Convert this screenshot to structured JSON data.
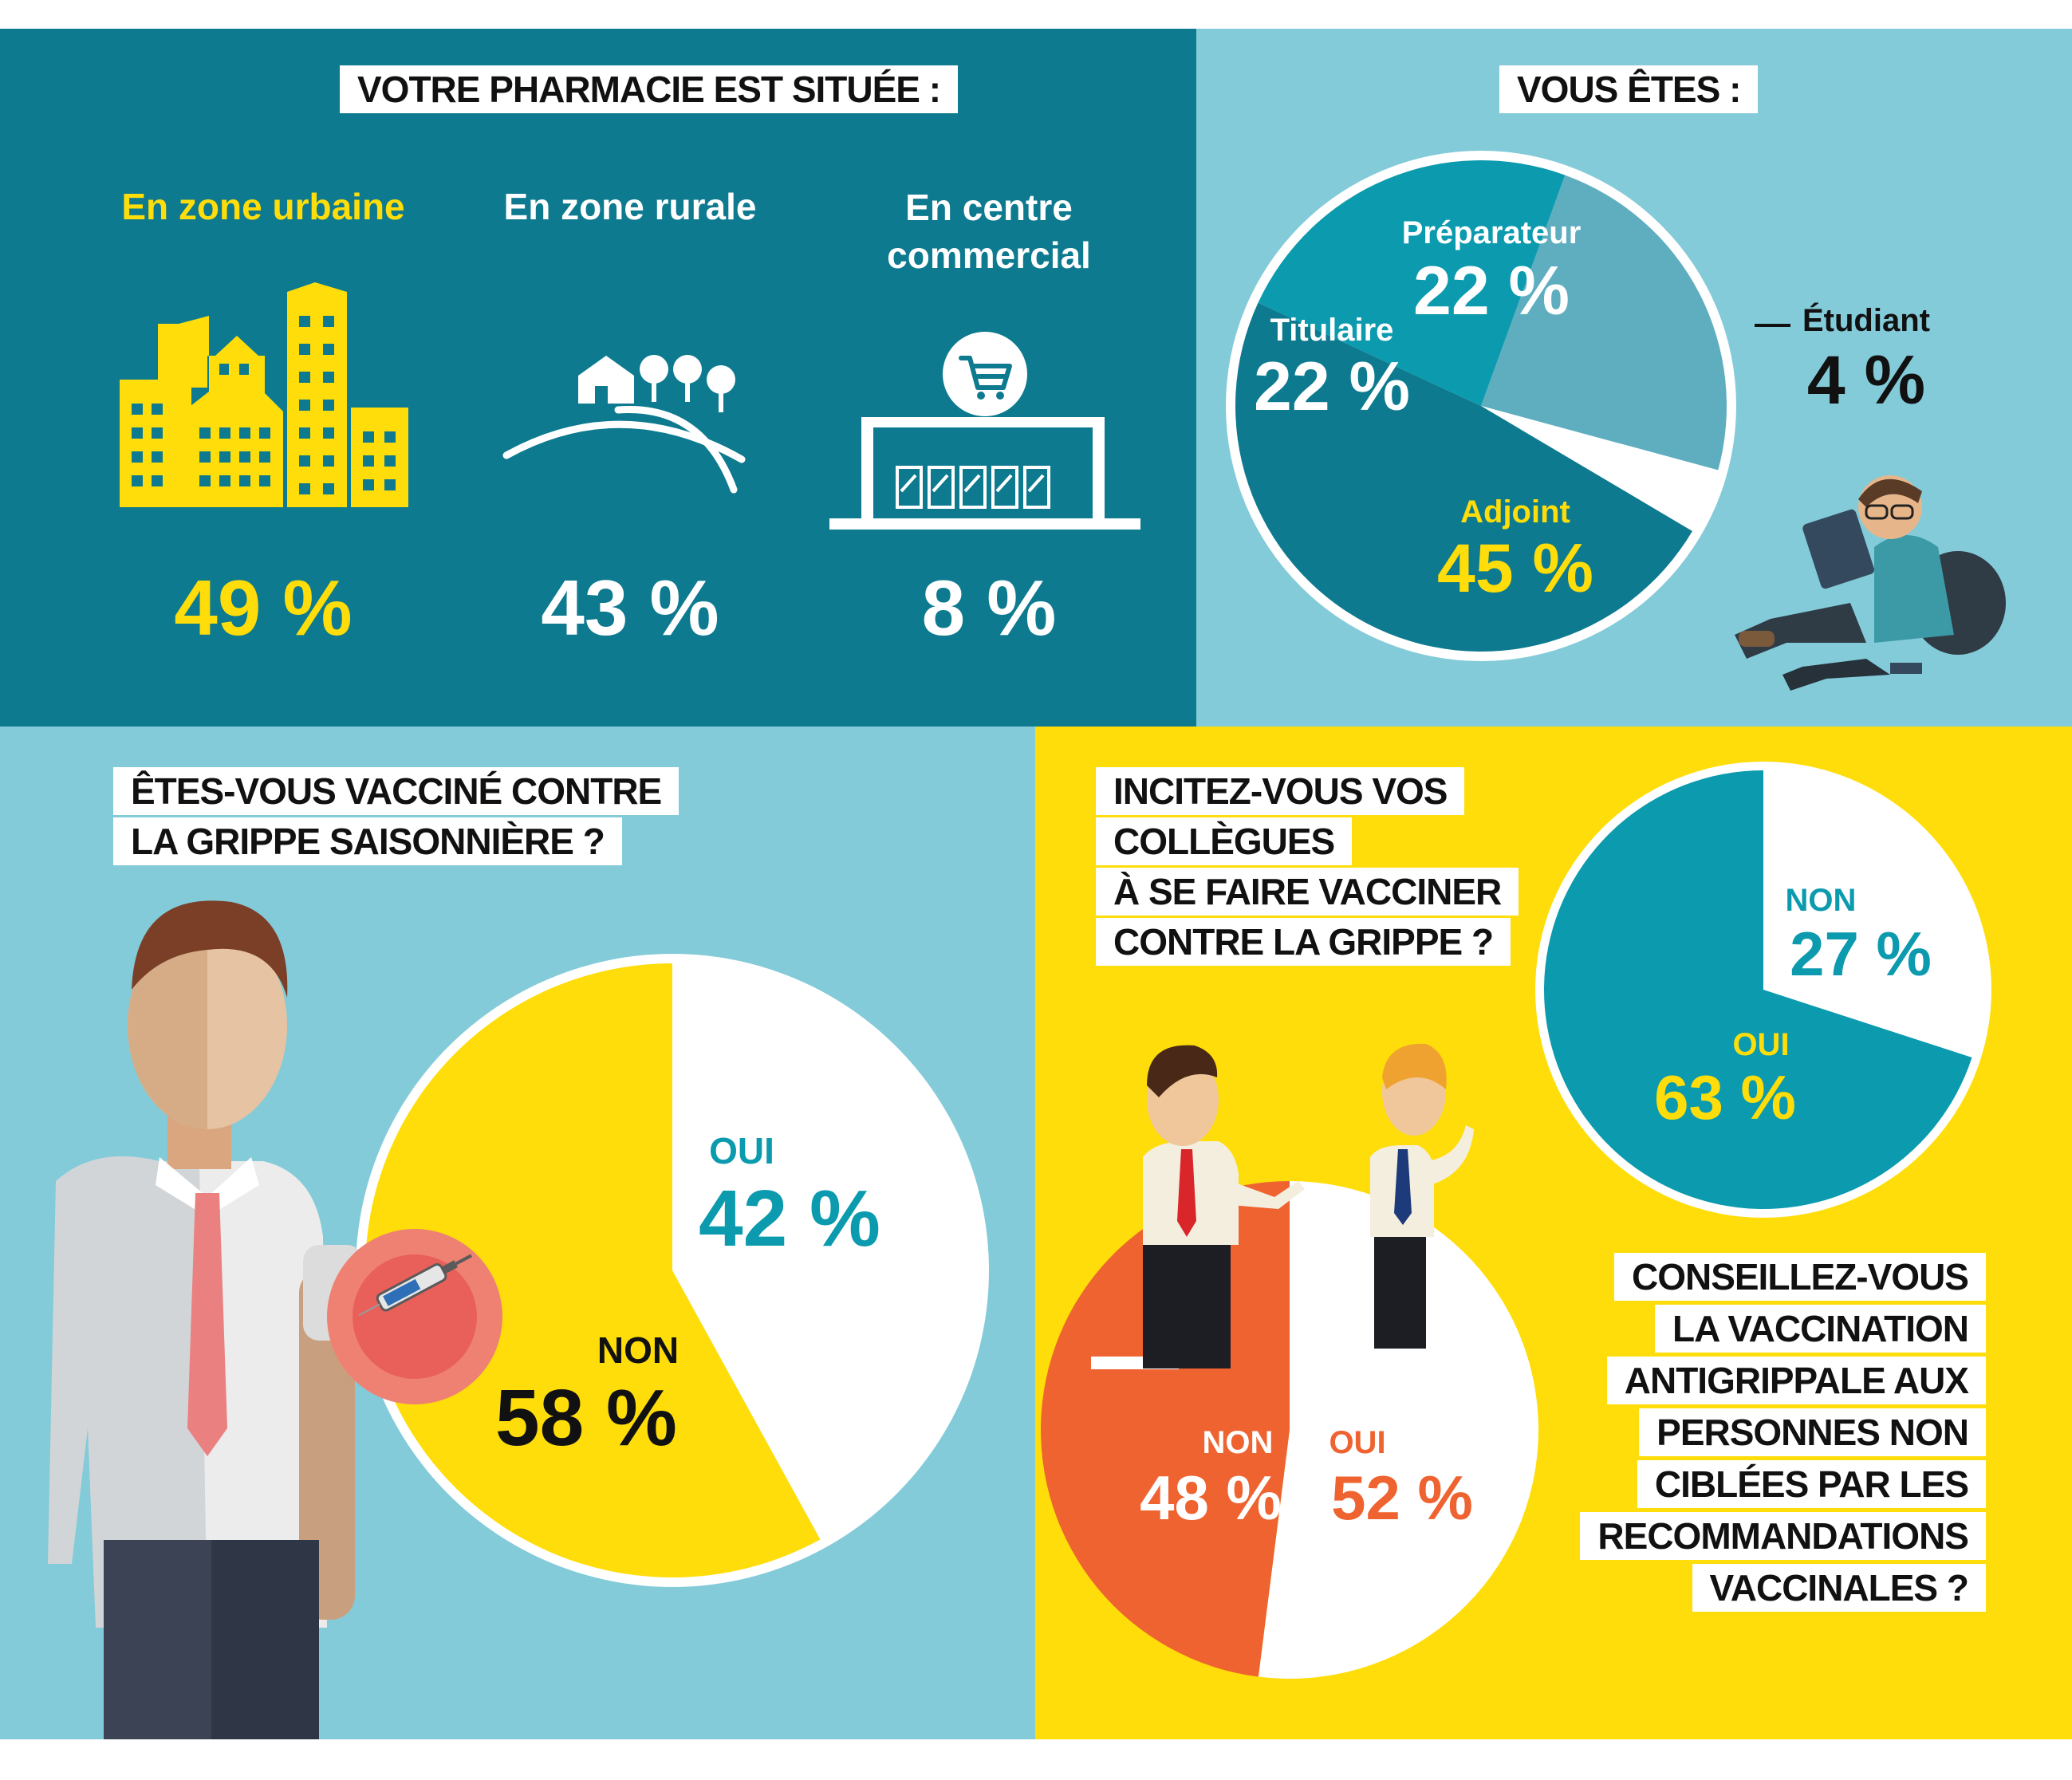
{
  "colors": {
    "teal_dark": "#0d7a8f",
    "teal_mid": "#0b9aae",
    "teal_light": "#83cbd9",
    "pie_prep": "#5faec0",
    "yellow": "#fedd0a",
    "orange": "#ee6330",
    "white": "#ffffff",
    "black": "#111111"
  },
  "location": {
    "title": "VOTRE PHARMACIE EST SITUÉE :",
    "items": [
      {
        "label": "En zone urbaine",
        "value": "49 %",
        "icon": "city-buildings-icon"
      },
      {
        "label": "En zone rurale",
        "value": "43 %",
        "icon": "countryside-house-icon"
      },
      {
        "label_line1": "En centre",
        "label_line2": "commercial",
        "value": "8 %",
        "icon": "shopping-center-cart-icon"
      }
    ]
  },
  "role": {
    "title": "VOUS ÊTES :",
    "slices": [
      {
        "label": "Préparateur",
        "value": "22 %"
      },
      {
        "label": "Étudiant",
        "value": "4 %"
      },
      {
        "label": "Adjoint",
        "value": "45 %"
      },
      {
        "label": "Titulaire",
        "value": "22 %"
      }
    ],
    "illustration": "student-reading-icon"
  },
  "vaccinated": {
    "title_line1": "ÊTES-VOUS VACCINÉ CONTRE",
    "title_line2": "LA GRIPPE SAISONNIÈRE ?",
    "oui_label": "OUI",
    "oui_value": "42 %",
    "non_label": "NON",
    "non_value": "58 %",
    "illustration": "man-vaccine-injection-icon"
  },
  "colleagues": {
    "title_lines": [
      "INCITEZ-VOUS VOS",
      "COLLÈGUES",
      "À SE FAIRE VACCINER",
      "CONTRE LA GRIPPE ?"
    ],
    "non_label": "NON",
    "non_value": "48 %",
    "oui_label": "OUI",
    "oui_value": "52 %",
    "illustration": "two-colleagues-talking-icon"
  },
  "advice": {
    "title_lines": [
      "CONSEILLEZ-VOUS",
      "LA VACCINATION",
      "ANTIGRIPPALE AUX",
      "PERSONNES NON",
      "CIBLÉES PAR LES",
      "RECOMMANDATIONS",
      "VACCINALES ?"
    ],
    "non_label": "NON",
    "non_value": "27 %",
    "oui_label": "OUI",
    "oui_value": "63 %"
  },
  "chart_data": [
    {
      "type": "bar",
      "categories": [
        "En zone urbaine",
        "En zone rurale",
        "En centre commercial"
      ],
      "values": [
        49,
        43,
        8
      ],
      "title": "VOTRE PHARMACIE EST SITUÉE :",
      "unit": "%"
    },
    {
      "type": "pie",
      "labels": [
        "Préparateur",
        "Étudiant",
        "Adjoint",
        "Titulaire"
      ],
      "values": [
        22,
        4,
        45,
        22
      ],
      "title": "VOUS ÊTES :",
      "unit": "%"
    },
    {
      "type": "pie",
      "labels": [
        "OUI",
        "NON"
      ],
      "values": [
        42,
        58
      ],
      "title": "ÊTES-VOUS VACCINÉ CONTRE LA GRIPPE SAISONNIÈRE ?",
      "unit": "%"
    },
    {
      "type": "pie",
      "labels": [
        "OUI",
        "NON"
      ],
      "values": [
        52,
        48
      ],
      "title": "INCITEZ-VOUS VOS COLLÈGUES À SE FAIRE VACCINER CONTRE LA GRIPPE ?",
      "unit": "%"
    },
    {
      "type": "pie",
      "labels": [
        "NON",
        "OUI"
      ],
      "values": [
        27,
        63
      ],
      "title": "CONSEILLEZ-VOUS LA VACCINATION ANTIGRIPPALE AUX PERSONNES NON CIBLÉES PAR LES RECOMMANDATIONS VACCINALES ?",
      "unit": "%"
    }
  ]
}
